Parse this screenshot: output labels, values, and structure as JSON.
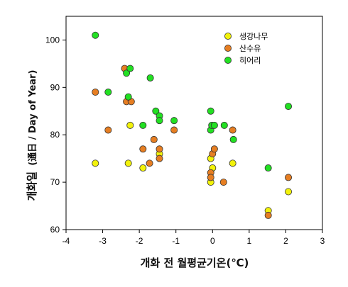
{
  "chart_data": {
    "type": "scatter",
    "title": "",
    "xlabel": "개화 전 월평균기온(℃)",
    "ylabel_main": "개화일",
    "ylabel_sub": "(通日 / Day of Year)",
    "xlim": [
      -4,
      3
    ],
    "ylim": [
      60,
      105
    ],
    "xticks": [
      "-4",
      "-3",
      "-2",
      "-1",
      "0",
      "1",
      "2",
      "3"
    ],
    "yticks": [
      "60",
      "70",
      "80",
      "90",
      "100"
    ],
    "xtick_values": [
      -4,
      -3,
      -2,
      -1,
      0,
      1,
      2,
      3
    ],
    "ytick_values": [
      60,
      70,
      80,
      90,
      100
    ],
    "grid": false,
    "legend_position": "top-right",
    "series": [
      {
        "name": "생강나무",
        "color": "#f2f20a",
        "points": [
          [
            -3.2,
            74
          ],
          [
            -2.3,
            74
          ],
          [
            -2.25,
            82
          ],
          [
            -1.9,
            73
          ],
          [
            -1.45,
            76
          ],
          [
            -0.05,
            75
          ],
          [
            -0.05,
            70
          ],
          [
            0.0,
            73
          ],
          [
            0.55,
            74
          ],
          [
            1.52,
            64
          ],
          [
            2.07,
            68
          ]
        ]
      },
      {
        "name": "산수유",
        "color": "#e67e22",
        "points": [
          [
            -3.2,
            89
          ],
          [
            -2.85,
            81
          ],
          [
            -2.4,
            94
          ],
          [
            -2.35,
            87
          ],
          [
            -2.22,
            87
          ],
          [
            -1.9,
            77
          ],
          [
            -1.72,
            74
          ],
          [
            -1.6,
            79
          ],
          [
            -1.45,
            77
          ],
          [
            -1.45,
            75
          ],
          [
            -1.05,
            81
          ],
          [
            -0.05,
            72
          ],
          [
            -0.05,
            71
          ],
          [
            0.0,
            76
          ],
          [
            0.05,
            77
          ],
          [
            0.3,
            70
          ],
          [
            0.55,
            81
          ],
          [
            1.52,
            63
          ],
          [
            2.07,
            71
          ]
        ]
      },
      {
        "name": "히어리",
        "color": "#22e022",
        "points": [
          [
            -3.2,
            101
          ],
          [
            -2.85,
            89
          ],
          [
            -2.35,
            93
          ],
          [
            -2.25,
            94
          ],
          [
            -2.3,
            88
          ],
          [
            -1.9,
            82
          ],
          [
            -1.7,
            92
          ],
          [
            -1.55,
            85
          ],
          [
            -1.45,
            84
          ],
          [
            -1.45,
            83
          ],
          [
            -1.05,
            83
          ],
          [
            -0.05,
            85
          ],
          [
            -0.05,
            81
          ],
          [
            -0.02,
            82
          ],
          [
            0.05,
            82
          ],
          [
            0.32,
            82
          ],
          [
            0.57,
            79
          ],
          [
            1.52,
            73
          ],
          [
            2.07,
            86
          ]
        ]
      }
    ]
  }
}
